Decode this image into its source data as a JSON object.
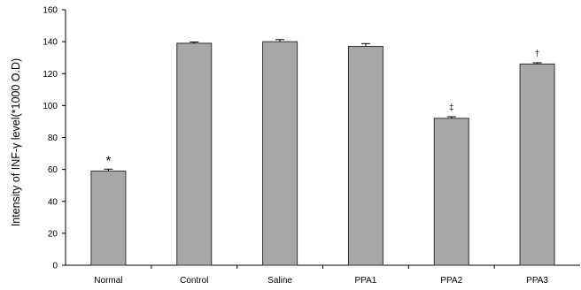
{
  "chart_data": {
    "type": "bar",
    "ylabel": "Intensity of INF-γ level(*1000 O.D)",
    "xlabel": "",
    "title": "",
    "ylim": [
      0,
      160
    ],
    "y_ticks": [
      0,
      20,
      40,
      60,
      80,
      100,
      120,
      140,
      160
    ],
    "categories": [
      "Normal",
      "Control",
      "Saline",
      "PPA1",
      "PPA2",
      "PPA3"
    ],
    "values": [
      59,
      139,
      140,
      137,
      92,
      126
    ],
    "errors": [
      1.2,
      0.8,
      1.3,
      1.8,
      1.0,
      0.8
    ],
    "annotations": [
      "*",
      "",
      "",
      "",
      "‡",
      "†"
    ],
    "grid": false,
    "legend": "none",
    "bar_color": "#a8a8a8",
    "bar_edge_color": "#333333"
  }
}
